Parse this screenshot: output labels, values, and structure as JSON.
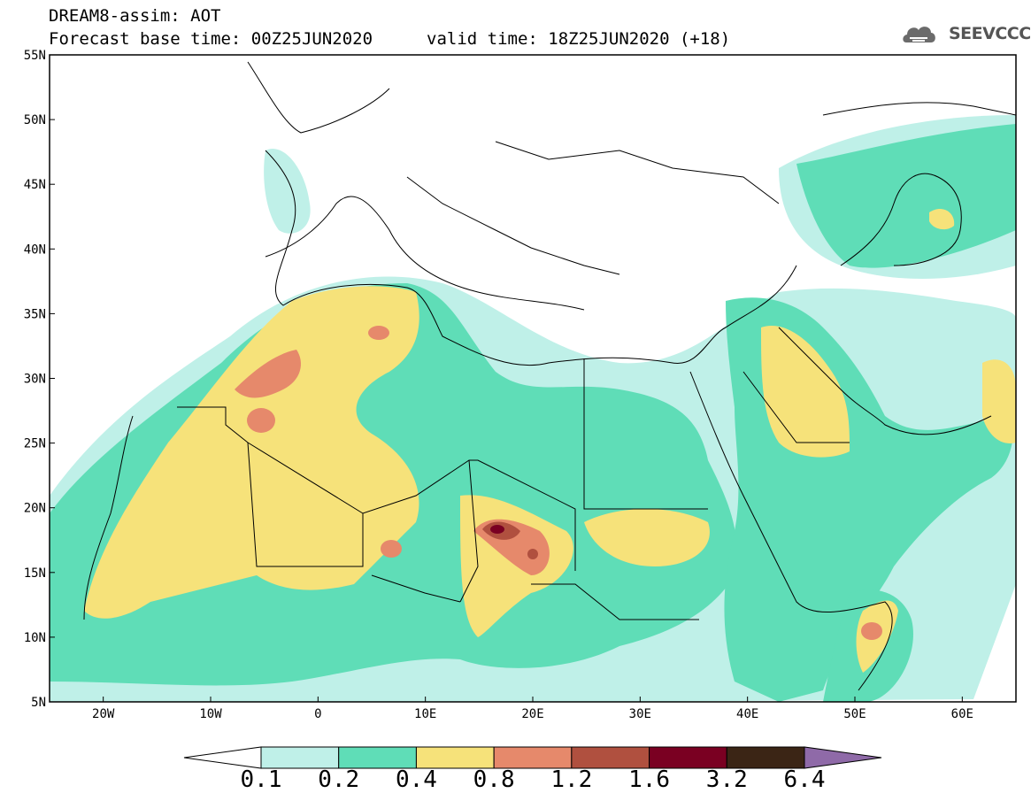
{
  "header": {
    "title_line1": "DREAM8-assim: AOT",
    "title_line2": "Forecast base time: 00Z25JUN2020",
    "valid_time": "valid time: 18Z25JUN2020 (+18)",
    "logo_text": "SEEVCCC",
    "logo_icon": "cloud-icon"
  },
  "map": {
    "lon_range": [
      -25,
      65
    ],
    "lat_range": [
      5,
      55
    ],
    "lon_ticks": [
      "20W",
      "10W",
      "0",
      "10E",
      "20E",
      "30E",
      "40E",
      "50E",
      "60E"
    ],
    "lat_ticks": [
      "55N",
      "50N",
      "45N",
      "40N",
      "35N",
      "30N",
      "25N",
      "20N",
      "15N",
      "10N",
      "5N"
    ]
  },
  "colorbar": {
    "levels": [
      "0.1",
      "0.2",
      "0.4",
      "0.8",
      "1.2",
      "1.6",
      "3.2",
      "6.4"
    ],
    "colors": [
      "#ffffff",
      "#bff0e8",
      "#5fddb7",
      "#f6e27a",
      "#e6896b",
      "#b0503f",
      "#7a0022",
      "#3b2515",
      "#8f6aa8"
    ]
  },
  "palette": {
    "ocean": "#ffffff",
    "aot_01_02": "#bff0e8",
    "aot_02_04": "#5fddb7",
    "aot_04_08": "#f6e27a",
    "aot_08_12": "#e6896b",
    "aot_12_16": "#b0503f",
    "aot_16_32": "#7a0022"
  }
}
